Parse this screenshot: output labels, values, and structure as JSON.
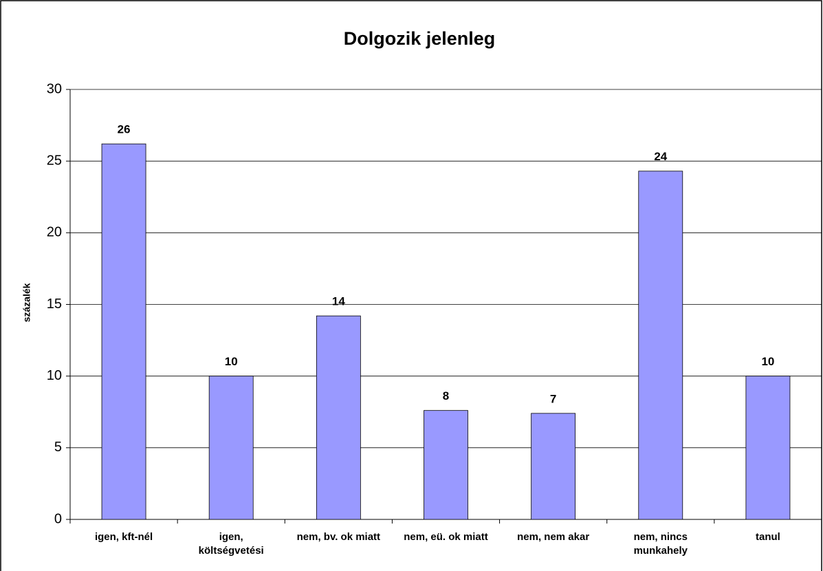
{
  "chart_data": {
    "type": "bar",
    "title": "Dolgozik jelenleg",
    "y_label": "százalék",
    "categories": [
      "igen, kft-nél",
      "igen, költségvetési",
      "nem, bv. ok miatt",
      "nem, eü. ok miatt",
      "nem, nem akar",
      "nem, nincs munkahely",
      "tanul"
    ],
    "values": [
      26.2,
      10.0,
      14.2,
      7.6,
      7.4,
      24.3,
      10.0
    ],
    "value_labels": [
      "26",
      "10",
      "14",
      "8",
      "7",
      "24",
      "10"
    ],
    "color": "#9999ff",
    "ylim": [
      0,
      30
    ],
    "yticks": [
      0,
      5,
      10,
      15,
      20,
      25,
      30
    ],
    "grid": true
  }
}
